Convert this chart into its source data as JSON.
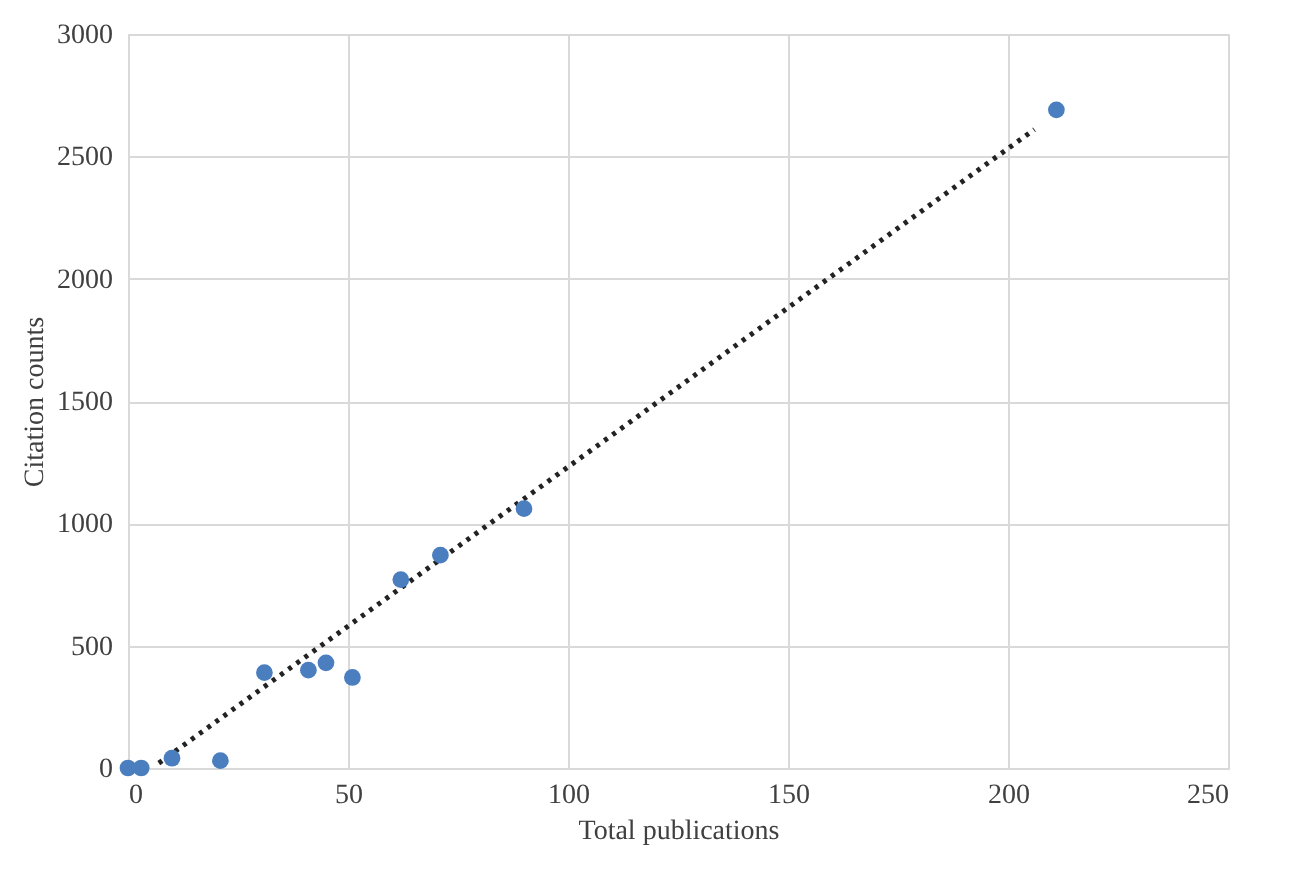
{
  "chart_data": {
    "type": "scatter",
    "xlabel": "Total publications",
    "ylabel": "Citation  counts",
    "x": [
      0,
      3,
      10,
      21,
      31,
      41,
      45,
      51,
      62,
      71,
      90,
      211
    ],
    "xlim": [
      0,
      250
    ],
    "xticks": [
      0,
      50,
      100,
      150,
      200,
      250
    ],
    "ylim": [
      0,
      3000
    ],
    "yticks": [
      0,
      500,
      1000,
      1500,
      2000,
      2500,
      3000
    ],
    "grid": true,
    "marker": "circle",
    "series": [
      {
        "color": "#4a7ebf",
        "values": [
          0,
          0,
          40,
          30,
          390,
          400,
          430,
          370,
          770,
          870,
          1060,
          2690
        ]
      },
      {
        "type": "line",
        "marker": "none",
        "line_style": "dotted",
        "color": "#222222",
        "x": [
          7,
          206
        ],
        "values": [
          20,
          2610
        ]
      }
    ]
  }
}
